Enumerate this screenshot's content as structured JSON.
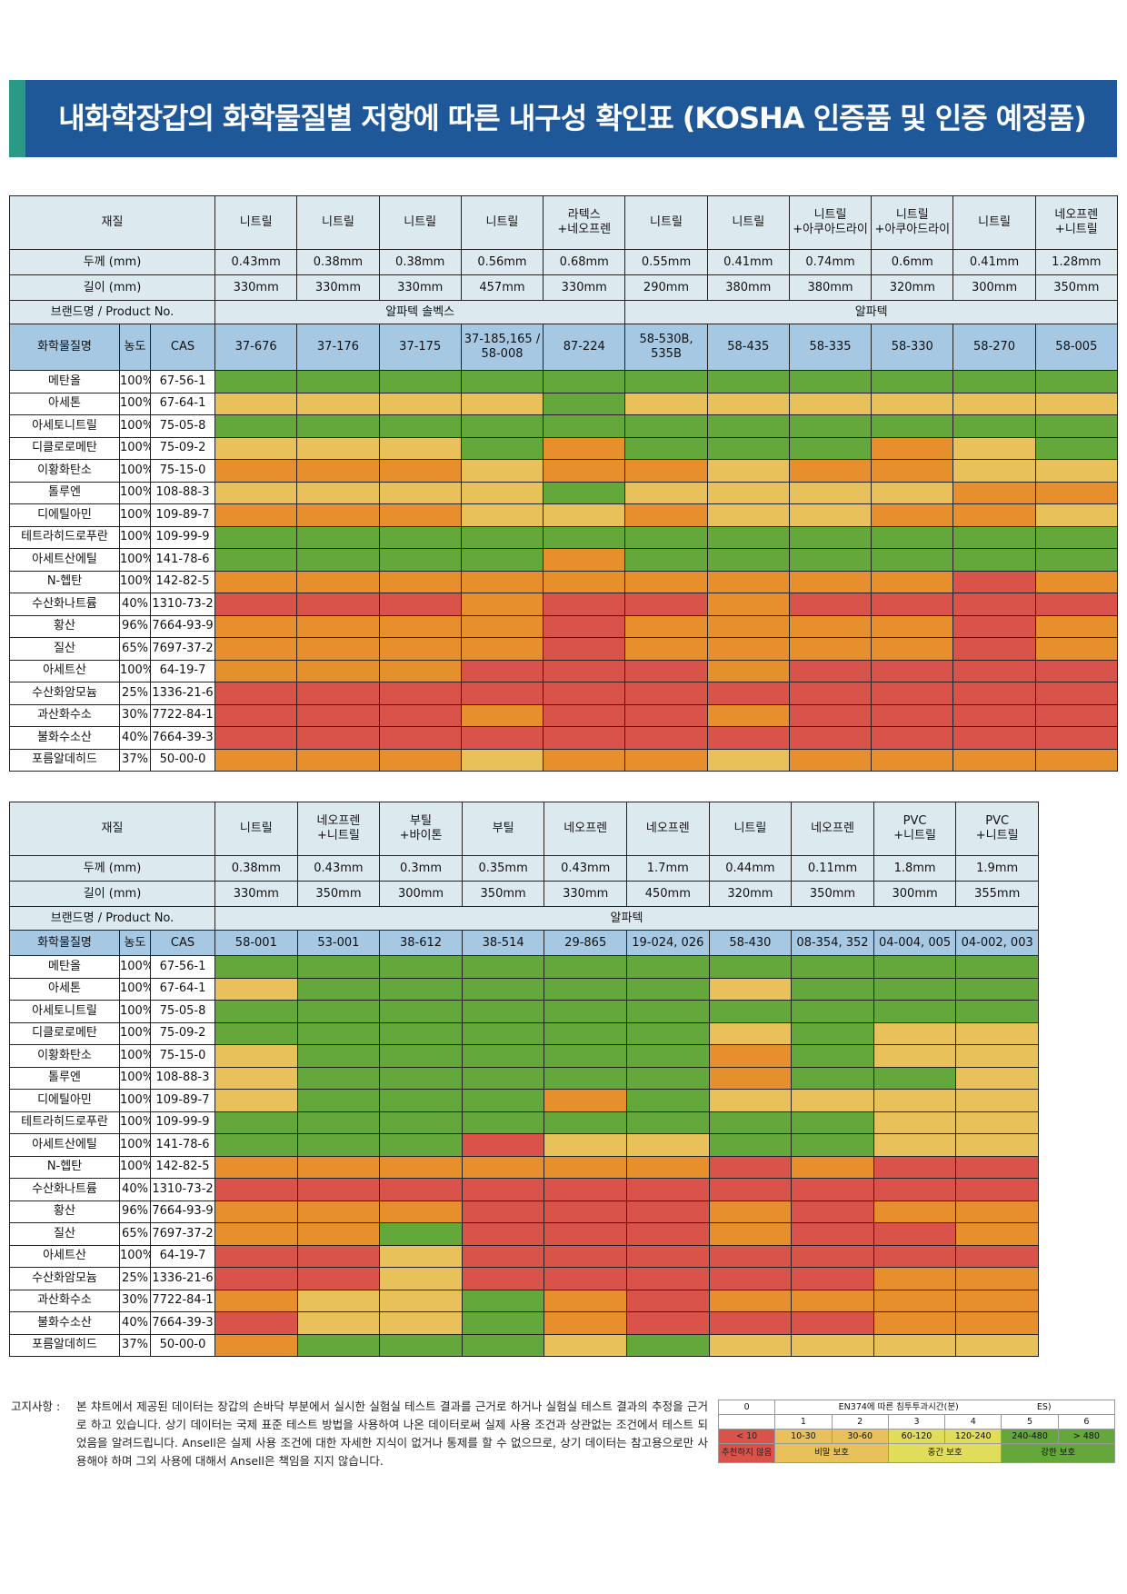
{
  "title": "내화학장갑의 화학물질별 저항에 따른 내구성 확인표 (KOSHA 인증품 및 인증 예정품)",
  "colors": {
    "c0": "#d9534a",
    "c1": "#e68f2c",
    "c2": "#e8c15b",
    "c3": "#64a83c",
    "header_bg": "#dceaf0",
    "blue_bg": "#a6c8e3",
    "banner": "#1f5899"
  },
  "labels": {
    "material": "재질",
    "thickness": "두께 (mm)",
    "length": "길이 (mm)",
    "brand": "브랜드명 / Product No.",
    "chemical": "화학물질명",
    "conc": "농도",
    "cas": "CAS"
  },
  "chemicals": [
    {
      "name": "메탄올",
      "conc": "100%",
      "cas": "67-56-1"
    },
    {
      "name": "아세톤",
      "conc": "100%",
      "cas": "67-64-1"
    },
    {
      "name": "아세토니트릴",
      "conc": "100%",
      "cas": "75-05-8"
    },
    {
      "name": "디클로로메탄",
      "conc": "100%",
      "cas": "75-09-2"
    },
    {
      "name": "이황화탄소",
      "conc": "100%",
      "cas": "75-15-0"
    },
    {
      "name": "톨루엔",
      "conc": "100%",
      "cas": "108-88-3"
    },
    {
      "name": "디에틸아민",
      "conc": "100%",
      "cas": "109-89-7"
    },
    {
      "name": "테트라히드로푸란",
      "conc": "100%",
      "cas": "109-99-9"
    },
    {
      "name": "아세트산에틸",
      "conc": "100%",
      "cas": "141-78-6"
    },
    {
      "name": "N-헵탄",
      "conc": "100%",
      "cas": "142-82-5"
    },
    {
      "name": "수산화나트륨",
      "conc": "40%",
      "cas": "1310-73-2"
    },
    {
      "name": "황산",
      "conc": "96%",
      "cas": "7664-93-9"
    },
    {
      "name": "질산",
      "conc": "65%",
      "cas": "7697-37-2"
    },
    {
      "name": "아세트산",
      "conc": "100%",
      "cas": "64-19-7"
    },
    {
      "name": "수산화암모늄",
      "conc": "25%",
      "cas": "1336-21-6"
    },
    {
      "name": "과산화수소",
      "conc": "30%",
      "cas": "7722-84-1"
    },
    {
      "name": "불화수소산",
      "conc": "40%",
      "cas": "7664-39-3"
    },
    {
      "name": "포름알데히드",
      "conc": "37%",
      "cas": "50-00-0"
    }
  ],
  "table1": {
    "materials": [
      [
        "니트릴"
      ],
      [
        "니트릴"
      ],
      [
        "니트릴"
      ],
      [
        "니트릴"
      ],
      [
        "라텍스",
        "+네오프렌"
      ],
      [
        "니트릴"
      ],
      [
        "니트릴"
      ],
      [
        "니트릴",
        "+아쿠아드라이"
      ],
      [
        "니트릴",
        "+아쿠아드라이"
      ],
      [
        "니트릴"
      ],
      [
        "네오프렌",
        "+니트릴"
      ]
    ],
    "thickness": [
      "0.43mm",
      "0.38mm",
      "0.38mm",
      "0.56mm",
      "0.68mm",
      "0.55mm",
      "0.41mm",
      "0.74mm",
      "0.6mm",
      "0.41mm",
      "1.28mm"
    ],
    "length": [
      "330mm",
      "330mm",
      "330mm",
      "457mm",
      "330mm",
      "290mm",
      "380mm",
      "380mm",
      "320mm",
      "300mm",
      "350mm"
    ],
    "brands": [
      {
        "name": "알파텍 솔벡스",
        "span": 5
      },
      {
        "name": "알파텍",
        "span": 6
      }
    ],
    "products": [
      [
        "37-676"
      ],
      [
        "37-176"
      ],
      [
        "37-175"
      ],
      [
        "37-185,165 /",
        "58-008"
      ],
      [
        "87-224"
      ],
      [
        "58-530B,",
        "535B"
      ],
      [
        "58-435"
      ],
      [
        "58-335"
      ],
      [
        "58-330"
      ],
      [
        "58-270"
      ],
      [
        "58-005"
      ]
    ],
    "ratings": [
      [
        3,
        3,
        3,
        3,
        3,
        3,
        3,
        3,
        3,
        3,
        3
      ],
      [
        2,
        2,
        2,
        2,
        3,
        2,
        2,
        2,
        2,
        2,
        2
      ],
      [
        3,
        3,
        3,
        3,
        3,
        3,
        3,
        3,
        3,
        3,
        3
      ],
      [
        2,
        2,
        2,
        3,
        1,
        3,
        3,
        3,
        1,
        2,
        3
      ],
      [
        1,
        1,
        1,
        2,
        1,
        1,
        2,
        1,
        1,
        2,
        2
      ],
      [
        2,
        2,
        2,
        2,
        3,
        2,
        2,
        2,
        2,
        1,
        1
      ],
      [
        1,
        1,
        1,
        2,
        2,
        1,
        2,
        2,
        1,
        1,
        2
      ],
      [
        3,
        3,
        3,
        3,
        3,
        3,
        3,
        3,
        3,
        3,
        3
      ],
      [
        3,
        3,
        3,
        3,
        1,
        3,
        3,
        3,
        3,
        3,
        3
      ],
      [
        1,
        1,
        1,
        1,
        1,
        1,
        1,
        1,
        1,
        0,
        1
      ],
      [
        0,
        0,
        0,
        1,
        0,
        0,
        1,
        0,
        0,
        0,
        0
      ],
      [
        1,
        1,
        1,
        1,
        0,
        1,
        1,
        1,
        1,
        0,
        1
      ],
      [
        1,
        1,
        1,
        1,
        0,
        1,
        1,
        1,
        1,
        0,
        1
      ],
      [
        1,
        1,
        1,
        0,
        0,
        0,
        1,
        0,
        0,
        0,
        0
      ],
      [
        0,
        0,
        0,
        0,
        0,
        0,
        0,
        0,
        0,
        0,
        0
      ],
      [
        0,
        0,
        0,
        1,
        0,
        0,
        1,
        0,
        0,
        0,
        0
      ],
      [
        0,
        0,
        0,
        0,
        0,
        0,
        0,
        0,
        0,
        0,
        0
      ],
      [
        1,
        1,
        1,
        2,
        1,
        1,
        2,
        1,
        1,
        1,
        1
      ]
    ]
  },
  "table2": {
    "materials": [
      [
        "니트릴"
      ],
      [
        "네오프렌",
        "+니트릴"
      ],
      [
        "부틸",
        "+바이톤"
      ],
      [
        "부틸"
      ],
      [
        "네오프렌"
      ],
      [
        "네오프렌"
      ],
      [
        "니트릴"
      ],
      [
        "네오프렌"
      ],
      [
        "PVC",
        "+니트릴"
      ],
      [
        "PVC",
        "+니트릴"
      ]
    ],
    "thickness": [
      "0.38mm",
      "0.43mm",
      "0.3mm",
      "0.35mm",
      "0.43mm",
      "1.7mm",
      "0.44mm",
      "0.11mm",
      "1.8mm",
      "1.9mm"
    ],
    "length": [
      "330mm",
      "350mm",
      "300mm",
      "350mm",
      "330mm",
      "450mm",
      "320mm",
      "350mm",
      "300mm",
      "355mm"
    ],
    "brands": [
      {
        "name": "알파텍",
        "span": 10
      }
    ],
    "products": [
      [
        "58-001"
      ],
      [
        "53-001"
      ],
      [
        "38-612"
      ],
      [
        "38-514"
      ],
      [
        "29-865"
      ],
      [
        "19-024, 026"
      ],
      [
        "58-430"
      ],
      [
        "08-354, 352"
      ],
      [
        "04-004, 005"
      ],
      [
        "04-002, 003"
      ]
    ],
    "ratings": [
      [
        3,
        3,
        3,
        3,
        3,
        3,
        3,
        3,
        3,
        3
      ],
      [
        2,
        3,
        3,
        3,
        3,
        3,
        2,
        3,
        3,
        3
      ],
      [
        3,
        3,
        3,
        3,
        3,
        3,
        3,
        3,
        3,
        3
      ],
      [
        3,
        3,
        3,
        3,
        3,
        3,
        2,
        3,
        2,
        2
      ],
      [
        2,
        3,
        3,
        3,
        3,
        3,
        1,
        3,
        2,
        2
      ],
      [
        2,
        3,
        3,
        3,
        3,
        3,
        1,
        3,
        3,
        2
      ],
      [
        2,
        3,
        3,
        3,
        1,
        3,
        2,
        2,
        2,
        2
      ],
      [
        3,
        3,
        3,
        3,
        3,
        3,
        3,
        3,
        2,
        2
      ],
      [
        3,
        3,
        3,
        0,
        2,
        2,
        3,
        3,
        2,
        2
      ],
      [
        1,
        1,
        1,
        1,
        1,
        1,
        0,
        1,
        0,
        0
      ],
      [
        0,
        0,
        0,
        0,
        0,
        0,
        0,
        0,
        0,
        0
      ],
      [
        1,
        1,
        1,
        0,
        0,
        0,
        1,
        0,
        1,
        1
      ],
      [
        1,
        1,
        3,
        0,
        0,
        0,
        1,
        0,
        0,
        1
      ],
      [
        0,
        0,
        2,
        0,
        0,
        0,
        0,
        0,
        0,
        0
      ],
      [
        0,
        0,
        2,
        0,
        0,
        0,
        0,
        0,
        1,
        1
      ],
      [
        1,
        2,
        2,
        3,
        1,
        0,
        1,
        1,
        1,
        1
      ],
      [
        0,
        2,
        2,
        3,
        1,
        0,
        0,
        0,
        1,
        1
      ],
      [
        1,
        3,
        3,
        3,
        2,
        3,
        2,
        2,
        2,
        2
      ]
    ]
  },
  "notice": {
    "label": "고지사항 :",
    "text": "본 챠트에서 제공된 데이터는 장갑의 손바닥 부분에서 실시한 실험실 테스트 결과를 근거로 하거나 실험실 테스트 결과의 추정을 근거로 하고 있습니다. 상기 데이터는 국제 표준 테스트 방법을 사용하여 나온 데이터로써 실제 사용 조건과 상관없는 조건에서 테스트 되었음을 알려드립니다. Ansell은 실제 사용 조건에 대한 자세한 지식이 없거나 통제를 할 수 없으므로, 상기 데이터는 참고용으로만 사용해야 하며 그외 사용에 대해서 Ansell은 책임을 지지 않습니다."
  },
  "legend": {
    "title": "EN374에 따른 침투투과시간(분)",
    "es": "ES)",
    "levels": [
      "0",
      "1",
      "2",
      "3",
      "4",
      "5",
      "6"
    ],
    "times": [
      "< 10",
      "10-30",
      "30-60",
      "60-120",
      "120-240",
      "240-480",
      "> 480"
    ],
    "protections": [
      "추천하지 않음",
      "비말 보호",
      "중간 보호",
      "강한 보호"
    ]
  }
}
